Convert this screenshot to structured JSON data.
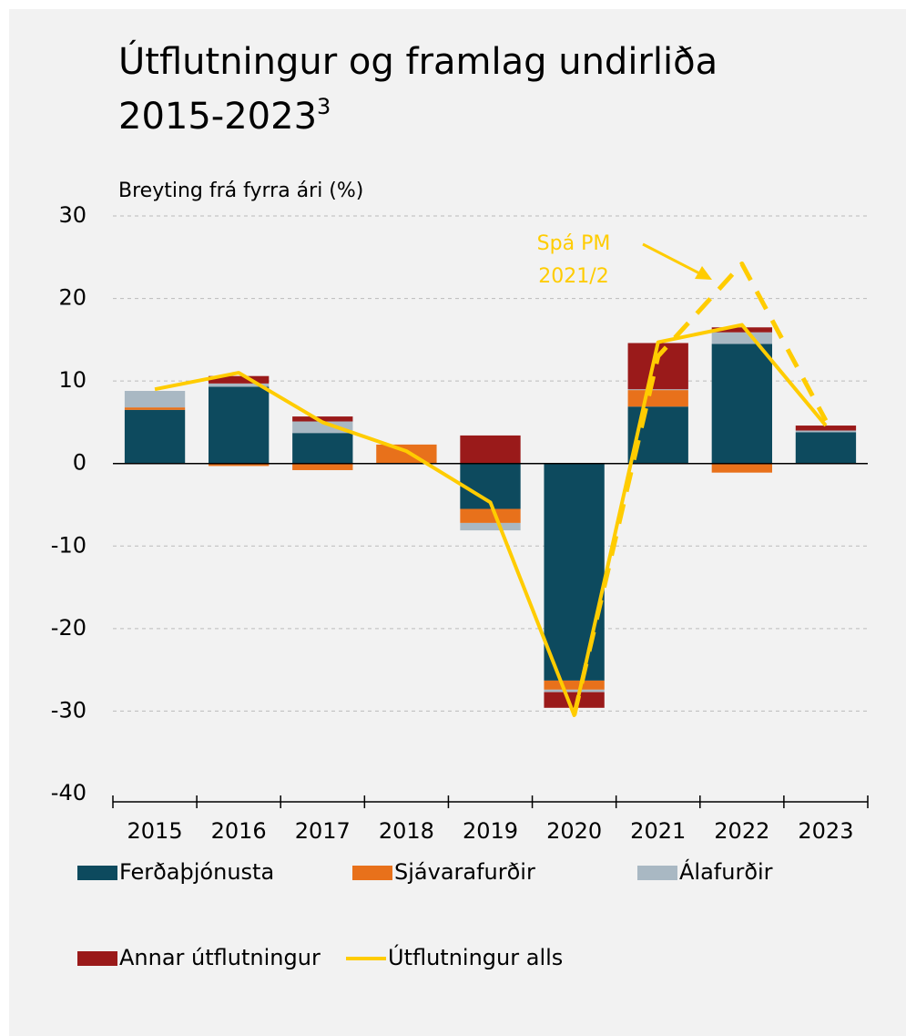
{
  "chart_data": {
    "type": "bar",
    "title": "Útflutningur og framlag undirliða 2015-2023",
    "title_footnote": "3",
    "y_axis_label": "Breyting frá fyrra ári (%)",
    "categories": [
      "2015",
      "2016",
      "2017",
      "2018",
      "2019",
      "2020",
      "2021",
      "2022",
      "2023"
    ],
    "stacked": true,
    "series": [
      {
        "name": "Ferðaþjónusta",
        "color": "#0d4a5e",
        "values": [
          6.5,
          9.3,
          3.7,
          0,
          -5.5,
          -26.3,
          6.9,
          14.5,
          3.8
        ]
      },
      {
        "name": "Sjávarafurðir",
        "color": "#e8711b",
        "values": [
          0.3,
          -0.3,
          -0.8,
          2.3,
          -1.7,
          -1.1,
          2.0,
          -1.1,
          0
        ]
      },
      {
        "name": "Álafurðir",
        "color": "#a9b8c3",
        "values": [
          2.0,
          0.4,
          1.4,
          0,
          -0.9,
          -0.3,
          0.1,
          1.4,
          0.2
        ]
      },
      {
        "name": "Annar útflutningur",
        "color": "#9a1a1a",
        "values": [
          0,
          0.9,
          0.6,
          0,
          3.4,
          -1.9,
          5.6,
          0.6,
          0.6
        ]
      }
    ],
    "lines": [
      {
        "name": "Útflutningur alls",
        "color": "#ffcc00",
        "dashed": false,
        "values": [
          9.0,
          11.0,
          5.0,
          1.5,
          -4.7,
          -30.5,
          14.7,
          16.8,
          4.6
        ]
      },
      {
        "color": "#ffcc00",
        "dashed": true,
        "values": [
          null,
          null,
          null,
          null,
          null,
          -30.5,
          13.0,
          24.2,
          5.2
        ]
      }
    ],
    "annotation": [
      "Spá PM",
      "2021/2"
    ],
    "ylim": [
      -40,
      30
    ],
    "yticks": [
      -40,
      -30,
      -20,
      -10,
      0,
      10,
      20,
      30
    ],
    "grid": true
  }
}
